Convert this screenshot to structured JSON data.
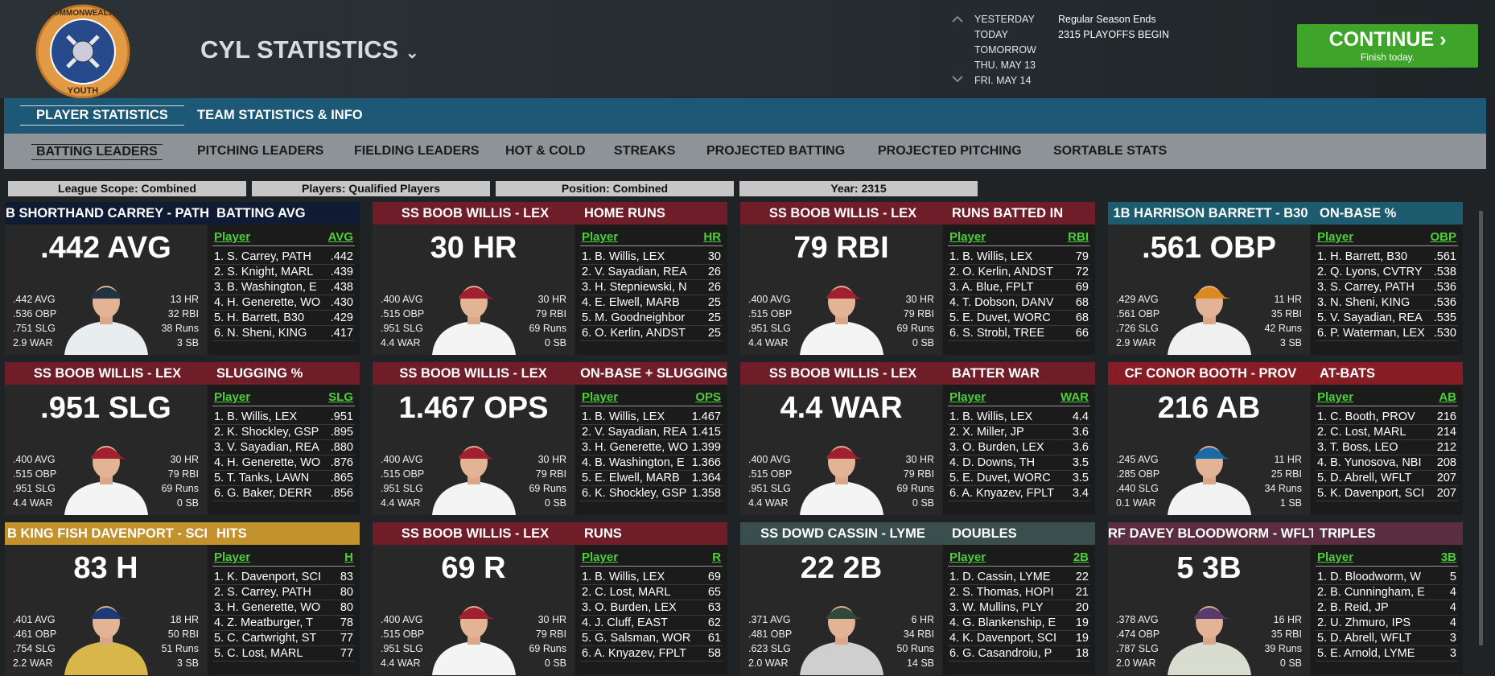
{
  "logo": {
    "top": "COMMONWEALTH",
    "bottom": "YOUTH"
  },
  "header": {
    "title": "CYL STATISTICS",
    "dates": [
      "YESTERDAY",
      "TODAY",
      "TOMORROW",
      "THU. MAY 13",
      "FRI. MAY 14"
    ],
    "notice": [
      "Regular Season Ends",
      "2315 PLAYOFFS BEGIN"
    ],
    "continue": {
      "label": "CONTINUE",
      "sub": "Finish today."
    }
  },
  "tabs": [
    "PLAYER STATISTICS",
    "TEAM STATISTICS & INFO"
  ],
  "subtabs": [
    "BATTING LEADERS",
    "PITCHING LEADERS",
    "FIELDING LEADERS",
    "HOT & COLD",
    "STREAKS",
    "PROJECTED BATTING",
    "PROJECTED PITCHING",
    "SORTABLE STATS"
  ],
  "filters": [
    "League Scope: Combined",
    "Players: Qualified Players",
    "Position: Combined",
    "Year: 2315"
  ],
  "cards": [
    {
      "player": "B SHORTHAND CARREY - PATH",
      "stat": "BATTING AVG",
      "color": "#0f1b33",
      "big": ".442 AVG",
      "left": [
        ".442 AVG",
        ".536 OBP",
        ".751 SLG",
        "2.9 WAR"
      ],
      "right": [
        "13 HR",
        "32 RBI",
        "38 Runs",
        "3 SB"
      ],
      "col": [
        "Player",
        "AVG"
      ],
      "rows": [
        [
          "1. S. Carrey, PATH",
          ".442"
        ],
        [
          "2. S. Knight, MARL",
          ".439"
        ],
        [
          "3. B. Washington, E",
          ".438"
        ],
        [
          "4. H. Generette, WO",
          ".430"
        ],
        [
          "5. H. Barrett, B30",
          ".429"
        ],
        [
          "6. N. Sheni, KING",
          ".417"
        ]
      ]
    },
    {
      "player": "SS BOOB WILLIS - LEX",
      "stat": "HOME RUNS",
      "color": "#6e1d29",
      "big": "30 HR",
      "left": [
        ".400 AVG",
        ".515 OBP",
        ".951 SLG",
        "4.4 WAR"
      ],
      "right": [
        "30 HR",
        "79 RBI",
        "69 Runs",
        "0 SB"
      ],
      "col": [
        "Player",
        "HR"
      ],
      "rows": [
        [
          "1. B. Willis, LEX",
          "30"
        ],
        [
          "2. V. Sayadian, REA",
          "26"
        ],
        [
          "3. H. Stepniewski, N",
          "26"
        ],
        [
          "4. E. Elwell, MARB",
          "25"
        ],
        [
          "5. M. Goodneighbor",
          "25"
        ],
        [
          "6. O. Kerlin, ANDST",
          "25"
        ]
      ]
    },
    {
      "player": "SS BOOB WILLIS - LEX",
      "stat": "RUNS BATTED IN",
      "color": "#6e1d29",
      "big": "79 RBI",
      "left": [
        ".400 AVG",
        ".515 OBP",
        ".951 SLG",
        "4.4 WAR"
      ],
      "right": [
        "30 HR",
        "79 RBI",
        "69 Runs",
        "0 SB"
      ],
      "col": [
        "Player",
        "RBI"
      ],
      "rows": [
        [
          "1. B. Willis, LEX",
          "79"
        ],
        [
          "2. O. Kerlin, ANDST",
          "72"
        ],
        [
          "3. A. Blue, FPLT",
          "69"
        ],
        [
          "4. T. Dobson, DANV",
          "68"
        ],
        [
          "5. E. Duvet, WORC",
          "68"
        ],
        [
          "6. S. Strobl, TREE",
          "66"
        ]
      ]
    },
    {
      "player": "1B HARRISON BARRETT - B30",
      "stat": "ON-BASE %",
      "color": "#1d5b6e",
      "big": ".561 OBP",
      "left": [
        ".429 AVG",
        ".561 OBP",
        ".726 SLG",
        "2.9 WAR"
      ],
      "right": [
        "11 HR",
        "35 RBI",
        "42 Runs",
        "3 SB"
      ],
      "col": [
        "Player",
        "OBP"
      ],
      "rows": [
        [
          "1. H. Barrett, B30",
          ".561"
        ],
        [
          "2. Q. Lyons, CVTRY",
          ".538"
        ],
        [
          "3. S. Carrey, PATH",
          ".536"
        ],
        [
          "3. N. Sheni, KING",
          ".536"
        ],
        [
          "5. V. Sayadian, REA",
          ".535"
        ],
        [
          "6. P. Waterman, LEX",
          ".530"
        ]
      ]
    },
    {
      "player": "SS BOOB WILLIS - LEX",
      "stat": "SLUGGING %",
      "color": "#6e1d29",
      "big": ".951 SLG",
      "left": [
        ".400 AVG",
        ".515 OBP",
        ".951 SLG",
        "4.4 WAR"
      ],
      "right": [
        "30 HR",
        "79 RBI",
        "69 Runs",
        "0 SB"
      ],
      "col": [
        "Player",
        "SLG"
      ],
      "rows": [
        [
          "1. B. Willis, LEX",
          ".951"
        ],
        [
          "2. K. Shockley, GSP",
          ".895"
        ],
        [
          "3. V. Sayadian, REA",
          ".880"
        ],
        [
          "4. H. Generette, WO",
          ".876"
        ],
        [
          "5. T. Tanks, LAWN",
          ".865"
        ],
        [
          "6. G. Baker, DERR",
          ".856"
        ]
      ]
    },
    {
      "player": "SS BOOB WILLIS - LEX",
      "stat": "ON-BASE + SLUGGING",
      "color": "#6e1d29",
      "big": "1.467 OPS",
      "left": [
        ".400 AVG",
        ".515 OBP",
        ".951 SLG",
        "4.4 WAR"
      ],
      "right": [
        "30 HR",
        "79 RBI",
        "69 Runs",
        "0 SB"
      ],
      "col": [
        "Player",
        "OPS"
      ],
      "rows": [
        [
          "1. B. Willis, LEX",
          "1.467"
        ],
        [
          "2. V. Sayadian, REA",
          "1.415"
        ],
        [
          "3. H. Generette, WO",
          "1.399"
        ],
        [
          "4. B. Washington, E",
          "1.366"
        ],
        [
          "5. E. Elwell, MARB",
          "1.364"
        ],
        [
          "6. K. Shockley, GSP",
          "1.358"
        ]
      ]
    },
    {
      "player": "SS BOOB WILLIS - LEX",
      "stat": "BATTER WAR",
      "color": "#6e1d29",
      "big": "4.4 WAR",
      "left": [
        ".400 AVG",
        ".515 OBP",
        ".951 SLG",
        "4.4 WAR"
      ],
      "right": [
        "30 HR",
        "79 RBI",
        "69 Runs",
        "0 SB"
      ],
      "col": [
        "Player",
        "WAR"
      ],
      "rows": [
        [
          "1. B. Willis, LEX",
          "4.4"
        ],
        [
          "2. X. Miller, JP",
          "3.6"
        ],
        [
          "3. O. Burden, LEX",
          "3.6"
        ],
        [
          "4. D. Downs, TH",
          "3.5"
        ],
        [
          "5. E. Duvet, WORC",
          "3.5"
        ],
        [
          "6. A. Knyazev, FPLT",
          "3.4"
        ]
      ]
    },
    {
      "player": "CF CONOR BOOTH - PROV",
      "stat": "AT-BATS",
      "color": "#861d24",
      "big": "216 AB",
      "left": [
        ".245 AVG",
        ".285 OBP",
        ".440 SLG",
        "0.1 WAR"
      ],
      "right": [
        "11 HR",
        "25 RBI",
        "34 Runs",
        "1 SB"
      ],
      "col": [
        "Player",
        "AB"
      ],
      "rows": [
        [
          "1. C. Booth, PROV",
          "216"
        ],
        [
          "2. C. Lost, MARL",
          "214"
        ],
        [
          "3. T. Boss, LEO",
          "212"
        ],
        [
          "4. B. Yunosova, NBI",
          "208"
        ],
        [
          "5. D. Abrell, WFLT",
          "207"
        ],
        [
          "5. K. Davenport, SCI",
          "207"
        ]
      ]
    },
    {
      "player": "B KING FISH DAVENPORT - SCI",
      "stat": "HITS",
      "color": "#c4922d",
      "big": "83 H",
      "left": [
        ".401 AVG",
        ".461 OBP",
        ".754 SLG",
        "2.2 WAR"
      ],
      "right": [
        "18 HR",
        "50 RBI",
        "51 Runs",
        "3 SB"
      ],
      "col": [
        "Player",
        "H"
      ],
      "rows": [
        [
          "1. K. Davenport, SCI",
          "83"
        ],
        [
          "2. S. Carrey, PATH",
          "80"
        ],
        [
          "3. H. Generette, WO",
          "80"
        ],
        [
          "4. Z. Meatburger, T",
          "78"
        ],
        [
          "5. C. Cartwright, ST",
          "77"
        ],
        [
          "5. C. Lost, MARL",
          "77"
        ]
      ]
    },
    {
      "player": "SS BOOB WILLIS - LEX",
      "stat": "RUNS",
      "color": "#6e1d29",
      "big": "69 R",
      "left": [
        ".400 AVG",
        ".515 OBP",
        ".951 SLG",
        "4.4 WAR"
      ],
      "right": [
        "30 HR",
        "79 RBI",
        "69 Runs",
        "0 SB"
      ],
      "col": [
        "Player",
        "R"
      ],
      "rows": [
        [
          "1. B. Willis, LEX",
          "69"
        ],
        [
          "2. C. Lost, MARL",
          "65"
        ],
        [
          "3. O. Burden, LEX",
          "63"
        ],
        [
          "4. J. Cluff, EAST",
          "62"
        ],
        [
          "5. G. Salsman, WOR",
          "61"
        ],
        [
          "6. A. Knyazev, FPLT",
          "58"
        ]
      ]
    },
    {
      "player": "SS DOWD CASSIN - LYME",
      "stat": "DOUBLES",
      "color": "#3b4e4e",
      "big": "22 2B",
      "left": [
        ".371 AVG",
        ".481 OBP",
        ".623 SLG",
        "2.0 WAR"
      ],
      "right": [
        "6 HR",
        "34 RBI",
        "50 Runs",
        "14 SB"
      ],
      "col": [
        "Player",
        "2B"
      ],
      "rows": [
        [
          "1. D. Cassin, LYME",
          "22"
        ],
        [
          "2. S. Thomas, HOPI",
          "21"
        ],
        [
          "3. W. Mullins, PLY",
          "20"
        ],
        [
          "4. G. Blankenship, E",
          "19"
        ],
        [
          "4. K. Davenport, SCI",
          "19"
        ],
        [
          "6. G. Casandroiu, P",
          "18"
        ]
      ]
    },
    {
      "player": "RF DAVEY BLOODWORM - WFLT",
      "stat": "TRIPLES",
      "color": "#5a2e3e",
      "big": "5 3B",
      "left": [
        ".378 AVG",
        ".474 OBP",
        ".787 SLG",
        "2.0 WAR"
      ],
      "right": [
        "16 HR",
        "35 RBI",
        "39 Runs",
        "0 SB"
      ],
      "col": [
        "Player",
        "3B"
      ],
      "rows": [
        [
          "1. D. Bloodworm, W",
          "5"
        ],
        [
          "2. B. Cunningham, E",
          "4"
        ],
        [
          "2. B. Reid, JP",
          "4"
        ],
        [
          "2. U. Zhmuro, IPS",
          "4"
        ],
        [
          "5. D. Abrell, WFLT",
          "3"
        ],
        [
          "5. E. Arnold, LYME",
          "3"
        ]
      ]
    }
  ]
}
